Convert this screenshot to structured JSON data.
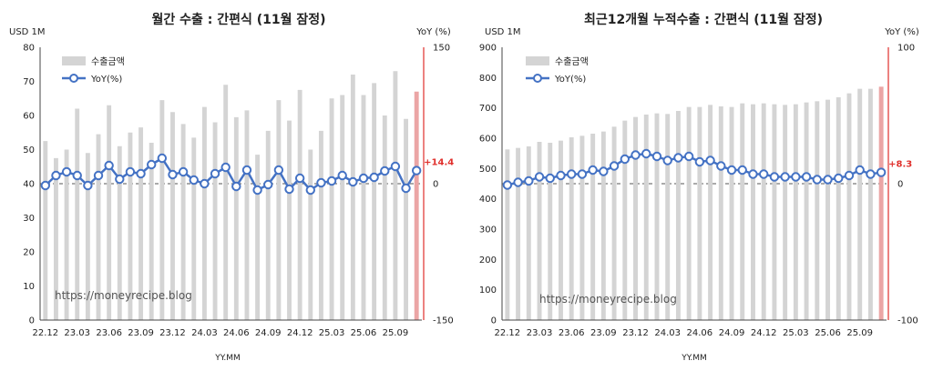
{
  "chart_data": [
    {
      "type": "bar",
      "title": "월간 수출 : 간편식 (11월 잠정)",
      "y_unit": "USD 1M",
      "y2_unit": "YoY (%)",
      "xlabel": "YY.MM",
      "ylim": [
        0,
        80
      ],
      "y_ticks": [
        0,
        10,
        20,
        30,
        40,
        50,
        60,
        70,
        80
      ],
      "y2lim": [
        -150,
        150
      ],
      "y2_ticks": [
        -150,
        0,
        150
      ],
      "x_tick_labels": [
        "22.12",
        "23.03",
        "23.06",
        "23.09",
        "23.12",
        "24.03",
        "24.06",
        "24.09",
        "24.12",
        "25.03",
        "25.06",
        "25.09"
      ],
      "categories": [
        "22.12",
        "23.01",
        "23.02",
        "23.03",
        "23.04",
        "23.05",
        "23.06",
        "23.07",
        "23.08",
        "23.09",
        "23.10",
        "23.11",
        "23.12",
        "24.01",
        "24.02",
        "24.03",
        "24.04",
        "24.05",
        "24.06",
        "24.07",
        "24.08",
        "24.09",
        "24.10",
        "24.11",
        "24.12",
        "25.01",
        "25.02",
        "25.03",
        "25.04",
        "25.05",
        "25.06",
        "25.07",
        "25.08",
        "25.09",
        "25.10",
        "25.11"
      ],
      "series": [
        {
          "name": "수출금액",
          "kind": "bar",
          "axis": "left",
          "values": [
            52.5,
            47.5,
            50,
            62,
            49,
            54.5,
            63,
            51,
            55,
            56.5,
            52,
            64.5,
            61,
            57.5,
            53.5,
            62.5,
            58,
            69,
            59.5,
            61.5,
            48.5,
            55.5,
            64.5,
            58.5,
            67.5,
            50,
            55.5,
            65,
            66,
            72,
            66,
            69.5,
            60,
            73,
            59,
            67
          ]
        },
        {
          "name": "YoY(%)",
          "kind": "line",
          "axis": "right",
          "values": [
            -2,
            9,
            13,
            9,
            -2,
            9,
            20,
            5,
            13,
            11,
            21,
            28,
            10,
            13,
            4,
            0,
            11,
            18,
            -3,
            15,
            -7,
            -1,
            15,
            -6,
            6,
            -7,
            1,
            3,
            9,
            2,
            6,
            7,
            14,
            19,
            -5,
            14.4
          ]
        }
      ],
      "last_value_label": "+14.4",
      "watermark": "https://moneyrecipe.blog",
      "legend_position": "top-left",
      "colors": {
        "bar": "#d4d4d4",
        "bar_last": "#eba5a5",
        "line": "#4472c4",
        "highlight": "#e0302c"
      }
    },
    {
      "type": "bar",
      "title": "최근12개월 누적수출 : 간편식 (11월 잠정)",
      "y_unit": "USD 1M",
      "y2_unit": "YoY (%)",
      "xlabel": "YY.MM",
      "ylim": [
        0,
        900
      ],
      "y_ticks": [
        0,
        100,
        200,
        300,
        400,
        500,
        600,
        700,
        800,
        900
      ],
      "y2lim": [
        -100,
        100
      ],
      "y2_ticks": [
        -100,
        0,
        100
      ],
      "x_tick_labels": [
        "22.12",
        "23.03",
        "23.06",
        "23.09",
        "23.12",
        "24.03",
        "24.06",
        "24.09",
        "24.12",
        "25.03",
        "25.06",
        "25.09"
      ],
      "categories": [
        "22.12",
        "23.01",
        "23.02",
        "23.03",
        "23.04",
        "23.05",
        "23.06",
        "23.07",
        "23.08",
        "23.09",
        "23.10",
        "23.11",
        "23.12",
        "24.01",
        "24.02",
        "24.03",
        "24.04",
        "24.05",
        "24.06",
        "24.07",
        "24.08",
        "24.09",
        "24.10",
        "24.11",
        "24.12",
        "25.01",
        "25.02",
        "25.03",
        "25.04",
        "25.05",
        "25.06",
        "25.07",
        "25.08",
        "25.09",
        "25.10",
        "25.11"
      ],
      "series": [
        {
          "name": "수출금액",
          "kind": "bar",
          "axis": "left",
          "values": [
            563,
            568,
            573,
            588,
            585,
            592,
            603,
            608,
            615,
            622,
            638,
            658,
            670,
            678,
            682,
            680,
            690,
            703,
            703,
            710,
            705,
            703,
            715,
            712,
            715,
            712,
            710,
            712,
            718,
            722,
            727,
            735,
            748,
            763,
            763,
            770
          ]
        },
        {
          "name": "YoY(%)",
          "kind": "line",
          "axis": "right",
          "values": [
            -1,
            1,
            2,
            5,
            4,
            6,
            7,
            7,
            10,
            9,
            13,
            18,
            21,
            22,
            20,
            17,
            19,
            20,
            16,
            17,
            13,
            10,
            10,
            7,
            7,
            5,
            5,
            5,
            5,
            3,
            3,
            4,
            6,
            10,
            7,
            8.3
          ]
        }
      ],
      "last_value_label": "+8.3",
      "watermark": "https://moneyrecipe.blog",
      "legend_position": "top-left",
      "colors": {
        "bar": "#d4d4d4",
        "bar_last": "#eba5a5",
        "line": "#4472c4",
        "highlight": "#e0302c"
      }
    }
  ]
}
